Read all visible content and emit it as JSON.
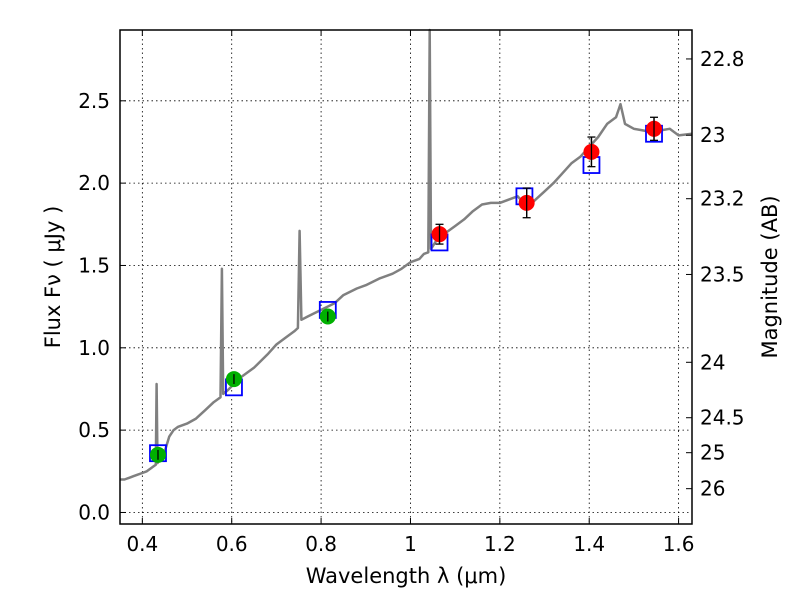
{
  "chart_data": {
    "type": "scatter",
    "xlabel": "Wavelength  λ (μm)",
    "ylabel": "Flux  Fν  ( μJy )",
    "ylabel_right": "Magnitude (AB)",
    "xlim": [
      0.35,
      1.63
    ],
    "ylim": [
      -0.07,
      2.93
    ],
    "grid": true,
    "x_ticks": [
      {
        "value": 0.4,
        "label": "0.4"
      },
      {
        "value": 0.6,
        "label": "0.6"
      },
      {
        "value": 0.8,
        "label": "0.8"
      },
      {
        "value": 1.0,
        "label": "1"
      },
      {
        "value": 1.2,
        "label": "1.2"
      },
      {
        "value": 1.4,
        "label": "1.4"
      },
      {
        "value": 1.6,
        "label": "1.6"
      }
    ],
    "y_ticks": [
      {
        "value": 0.0,
        "label": "0.0"
      },
      {
        "value": 0.5,
        "label": "0.5"
      },
      {
        "value": 1.0,
        "label": "1.0"
      },
      {
        "value": 1.5,
        "label": "1.5"
      },
      {
        "value": 2.0,
        "label": "2.0"
      },
      {
        "value": 2.5,
        "label": "2.5"
      }
    ],
    "magnitude_ticks": [
      {
        "value": 22.8,
        "label": "22.8"
      },
      {
        "value": 23.0,
        "label": "23"
      },
      {
        "value": 23.2,
        "label": "23.2"
      },
      {
        "value": 23.5,
        "label": "23.5"
      },
      {
        "value": 24.0,
        "label": "24"
      },
      {
        "value": 24.5,
        "label": "24.5"
      },
      {
        "value": 25.0,
        "label": "25"
      },
      {
        "value": 26.0,
        "label": "26"
      }
    ],
    "series": [
      {
        "kind": "model-spectrum",
        "color": "#808080",
        "points": [
          [
            0.35,
            0.2
          ],
          [
            0.36,
            0.2
          ],
          [
            0.37,
            0.21
          ],
          [
            0.38,
            0.22
          ],
          [
            0.39,
            0.23
          ],
          [
            0.4,
            0.24
          ],
          [
            0.41,
            0.25
          ],
          [
            0.42,
            0.27
          ],
          [
            0.425,
            0.28
          ],
          [
            0.43,
            0.29
          ],
          [
            0.432,
            0.78
          ],
          [
            0.434,
            0.3
          ],
          [
            0.44,
            0.33
          ],
          [
            0.45,
            0.37
          ],
          [
            0.46,
            0.46
          ],
          [
            0.47,
            0.5
          ],
          [
            0.48,
            0.52
          ],
          [
            0.5,
            0.54
          ],
          [
            0.52,
            0.57
          ],
          [
            0.54,
            0.62
          ],
          [
            0.56,
            0.67
          ],
          [
            0.57,
            0.69
          ],
          [
            0.575,
            0.7
          ],
          [
            0.578,
            1.48
          ],
          [
            0.581,
            0.72
          ],
          [
            0.59,
            0.74
          ],
          [
            0.62,
            0.82
          ],
          [
            0.65,
            0.88
          ],
          [
            0.68,
            0.96
          ],
          [
            0.7,
            1.02
          ],
          [
            0.72,
            1.06
          ],
          [
            0.74,
            1.1
          ],
          [
            0.748,
            1.12
          ],
          [
            0.752,
            1.71
          ],
          [
            0.756,
            1.17
          ],
          [
            0.77,
            1.19
          ],
          [
            0.8,
            1.23
          ],
          [
            0.83,
            1.27
          ],
          [
            0.85,
            1.32
          ],
          [
            0.88,
            1.36
          ],
          [
            0.9,
            1.38
          ],
          [
            0.93,
            1.42
          ],
          [
            0.96,
            1.45
          ],
          [
            0.98,
            1.48
          ],
          [
            1.0,
            1.52
          ],
          [
            1.02,
            1.54
          ],
          [
            1.03,
            1.57
          ],
          [
            1.04,
            1.58
          ],
          [
            1.043,
            2.93
          ],
          [
            1.046,
            1.6
          ],
          [
            1.06,
            1.66
          ],
          [
            1.08,
            1.7
          ],
          [
            1.1,
            1.74
          ],
          [
            1.12,
            1.78
          ],
          [
            1.14,
            1.83
          ],
          [
            1.16,
            1.87
          ],
          [
            1.18,
            1.88
          ],
          [
            1.2,
            1.88
          ],
          [
            1.22,
            1.9
          ],
          [
            1.24,
            1.92
          ],
          [
            1.25,
            1.89
          ],
          [
            1.26,
            1.85
          ],
          [
            1.28,
            1.9
          ],
          [
            1.3,
            1.95
          ],
          [
            1.32,
            2.0
          ],
          [
            1.34,
            2.06
          ],
          [
            1.36,
            2.12
          ],
          [
            1.38,
            2.16
          ],
          [
            1.4,
            2.22
          ],
          [
            1.42,
            2.28
          ],
          [
            1.44,
            2.36
          ],
          [
            1.46,
            2.4
          ],
          [
            1.47,
            2.48
          ],
          [
            1.48,
            2.36
          ],
          [
            1.5,
            2.33
          ],
          [
            1.52,
            2.32
          ],
          [
            1.54,
            2.31
          ],
          [
            1.56,
            2.32
          ],
          [
            1.58,
            2.33
          ],
          [
            1.6,
            2.29
          ],
          [
            1.63,
            2.3
          ]
        ]
      },
      {
        "kind": "model-bandpass-flux",
        "marker": "open-square",
        "color": "#0000ff",
        "points": [
          [
            0.435,
            0.36
          ],
          [
            0.605,
            0.76
          ],
          [
            0.815,
            1.23
          ],
          [
            1.065,
            1.64
          ],
          [
            1.255,
            1.92
          ],
          [
            1.405,
            2.11
          ],
          [
            1.545,
            2.3
          ]
        ]
      },
      {
        "kind": "observed-flux",
        "marker": "filled-circle",
        "color": "#00b000",
        "points": [
          {
            "x": 0.435,
            "y": 0.35,
            "err": 0.03
          },
          {
            "x": 0.605,
            "y": 0.81,
            "err": 0.03
          },
          {
            "x": 0.815,
            "y": 1.19,
            "err": 0.03
          }
        ]
      },
      {
        "kind": "observed-flux",
        "marker": "filled-circle",
        "color": "#ff0000",
        "points": [
          {
            "x": 1.065,
            "y": 1.69,
            "err": 0.06
          },
          {
            "x": 1.26,
            "y": 1.88,
            "err": 0.09
          },
          {
            "x": 1.405,
            "y": 2.19,
            "err": 0.09
          },
          {
            "x": 1.545,
            "y": 2.33,
            "err": 0.07
          }
        ]
      }
    ]
  }
}
